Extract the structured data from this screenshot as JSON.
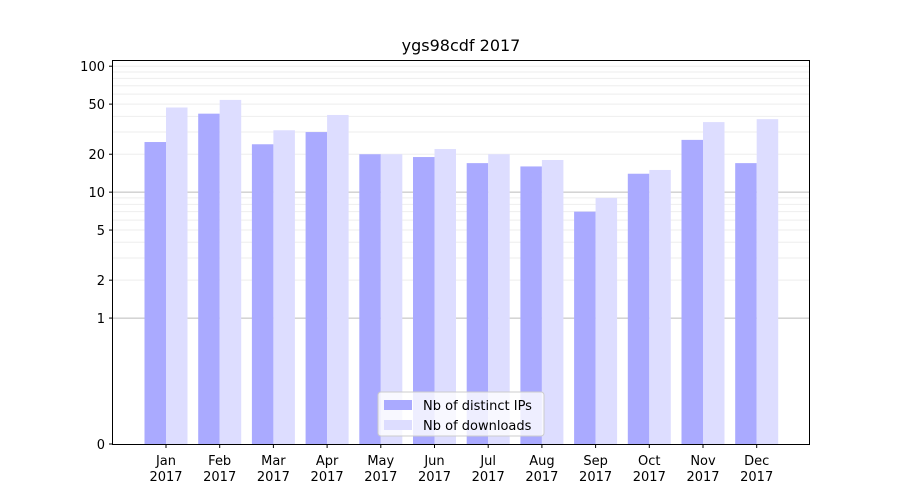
{
  "chart_data": {
    "type": "bar",
    "title": "ygs98cdf 2017",
    "xlabel": "",
    "ylabel": "",
    "y_scale": "symlog",
    "ylim": [
      0,
      110
    ],
    "yticks": [
      0,
      1,
      2,
      5,
      10,
      20,
      50,
      100
    ],
    "ytick_labels": [
      "0",
      "1",
      "2",
      "5",
      "10",
      "20",
      "50",
      "100"
    ],
    "major_gridlines": [
      1,
      10
    ],
    "minor_grid": true,
    "legend_position": "bottom-center",
    "categories": [
      [
        "Jan",
        "2017"
      ],
      [
        "Feb",
        "2017"
      ],
      [
        "Mar",
        "2017"
      ],
      [
        "Apr",
        "2017"
      ],
      [
        "May",
        "2017"
      ],
      [
        "Jun",
        "2017"
      ],
      [
        "Jul",
        "2017"
      ],
      [
        "Aug",
        "2017"
      ],
      [
        "Sep",
        "2017"
      ],
      [
        "Oct",
        "2017"
      ],
      [
        "Nov",
        "2017"
      ],
      [
        "Dec",
        "2017"
      ]
    ],
    "series": [
      {
        "name": "Nb of distinct IPs",
        "color": "#aaaaff",
        "values": [
          25,
          42,
          24,
          30,
          20,
          19,
          17,
          16,
          7,
          14,
          26,
          17
        ]
      },
      {
        "name": "Nb of downloads",
        "color": "#ddddff",
        "values": [
          47,
          54,
          31,
          41,
          20,
          22,
          20,
          18,
          9,
          15,
          36,
          38
        ]
      }
    ]
  }
}
